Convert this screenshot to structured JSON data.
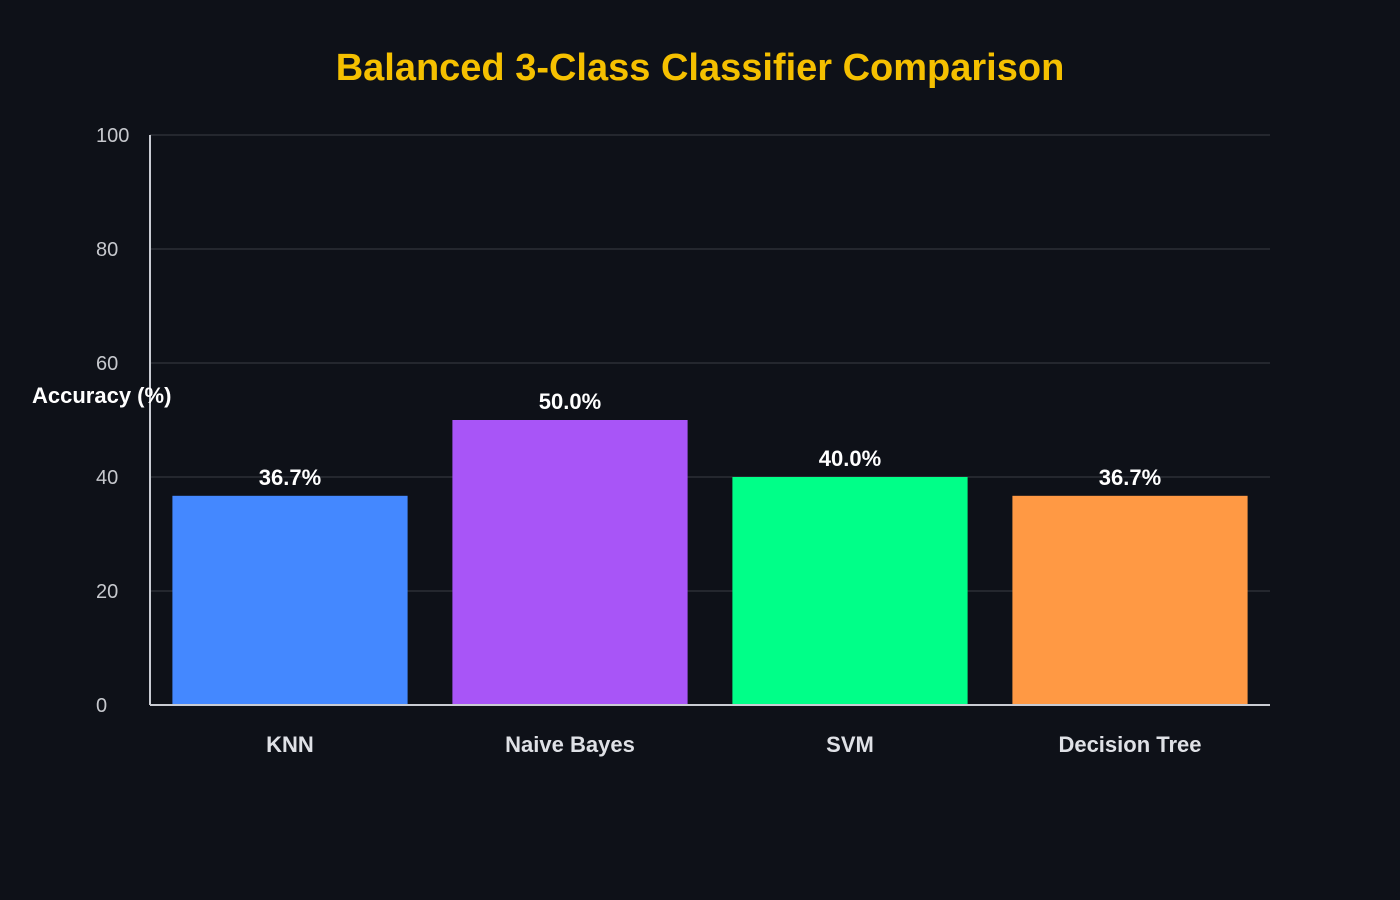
{
  "chart_data": {
    "type": "bar",
    "title": "Balanced 3-Class Classifier Comparison",
    "xlabel": "",
    "ylabel": "Accuracy (%)",
    "categories": [
      "KNN",
      "Naive Bayes",
      "SVM",
      "Decision Tree"
    ],
    "values": [
      36.7,
      50.0,
      40.0,
      36.7
    ],
    "data_labels": [
      "36.7%",
      "50.0%",
      "40.0%",
      "36.7%"
    ],
    "colors": [
      "#4488ff",
      "#a855f7",
      "#00ff88",
      "#ff9944"
    ],
    "ylim": [
      0,
      100
    ],
    "yticks": [
      0,
      20,
      40,
      60,
      80,
      100
    ],
    "grid": true,
    "legend": "none"
  },
  "theme": {
    "background": "#0e1118",
    "title_color": "#f5c000"
  }
}
